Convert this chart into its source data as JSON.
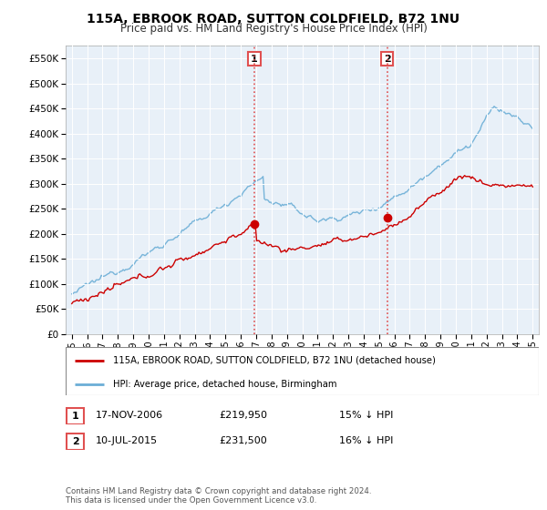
{
  "title": "115A, EBROOK ROAD, SUTTON COLDFIELD, B72 1NU",
  "subtitle": "Price paid vs. HM Land Registry's House Price Index (HPI)",
  "ylim": [
    0,
    575000
  ],
  "yticks": [
    0,
    50000,
    100000,
    150000,
    200000,
    250000,
    300000,
    350000,
    400000,
    450000,
    500000,
    550000
  ],
  "x_start_year": 1995,
  "x_end_year": 2025,
  "hpi_color": "#6baed6",
  "price_color": "#cc0000",
  "sale1_date": 2006.88,
  "sale1_price": 219950,
  "sale1_label": "1",
  "sale2_date": 2015.53,
  "sale2_price": 231500,
  "sale2_label": "2",
  "vline_color": "#e05050",
  "legend_label_red": "115A, EBROOK ROAD, SUTTON COLDFIELD, B72 1NU (detached house)",
  "legend_label_blue": "HPI: Average price, detached house, Birmingham",
  "table_rows": [
    {
      "num": "1",
      "date": "17-NOV-2006",
      "price": "£219,950",
      "hpi": "15% ↓ HPI"
    },
    {
      "num": "2",
      "date": "10-JUL-2015",
      "price": "£231,500",
      "hpi": "16% ↓ HPI"
    }
  ],
  "footnote": "Contains HM Land Registry data © Crown copyright and database right 2024.\nThis data is licensed under the Open Government Licence v3.0.",
  "background_color": "#ffffff",
  "plot_bg_color": "#e8f0f8"
}
